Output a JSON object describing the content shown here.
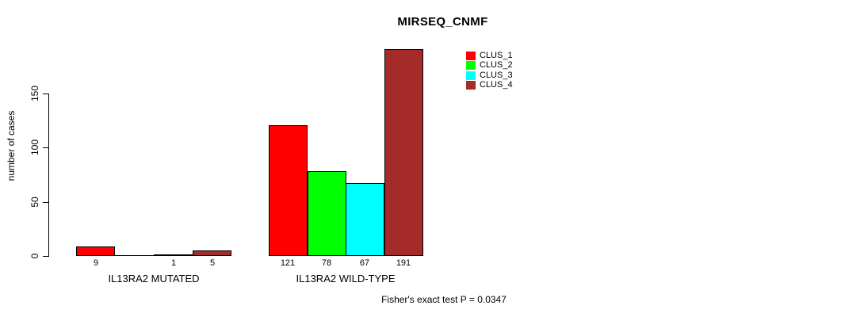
{
  "chart_data": {
    "type": "bar",
    "title": "MIRSEQ_CNMF",
    "ylabel": "number of cases",
    "yticks": [
      0,
      50,
      100,
      150
    ],
    "ylim": [
      0,
      200
    ],
    "grid": false,
    "legend_position": "top-right",
    "series": [
      {
        "name": "CLUS_1",
        "color": "#ff0000"
      },
      {
        "name": "CLUS_2",
        "color": "#00ff00"
      },
      {
        "name": "CLUS_3",
        "color": "#00ffff"
      },
      {
        "name": "CLUS_4",
        "color": "#a52a2a"
      }
    ],
    "categories": [
      "IL13RA2 MUTATED",
      "IL13RA2 WILD-TYPE"
    ],
    "values_by_category": [
      [
        9,
        0,
        1,
        5
      ],
      [
        121,
        78,
        67,
        191
      ]
    ],
    "bar_value_labels": [
      [
        "9",
        "",
        "1",
        "5"
      ],
      [
        "121",
        "78",
        "67",
        "191"
      ]
    ],
    "footnote": "Fisher's exact test P = 0.0347"
  }
}
